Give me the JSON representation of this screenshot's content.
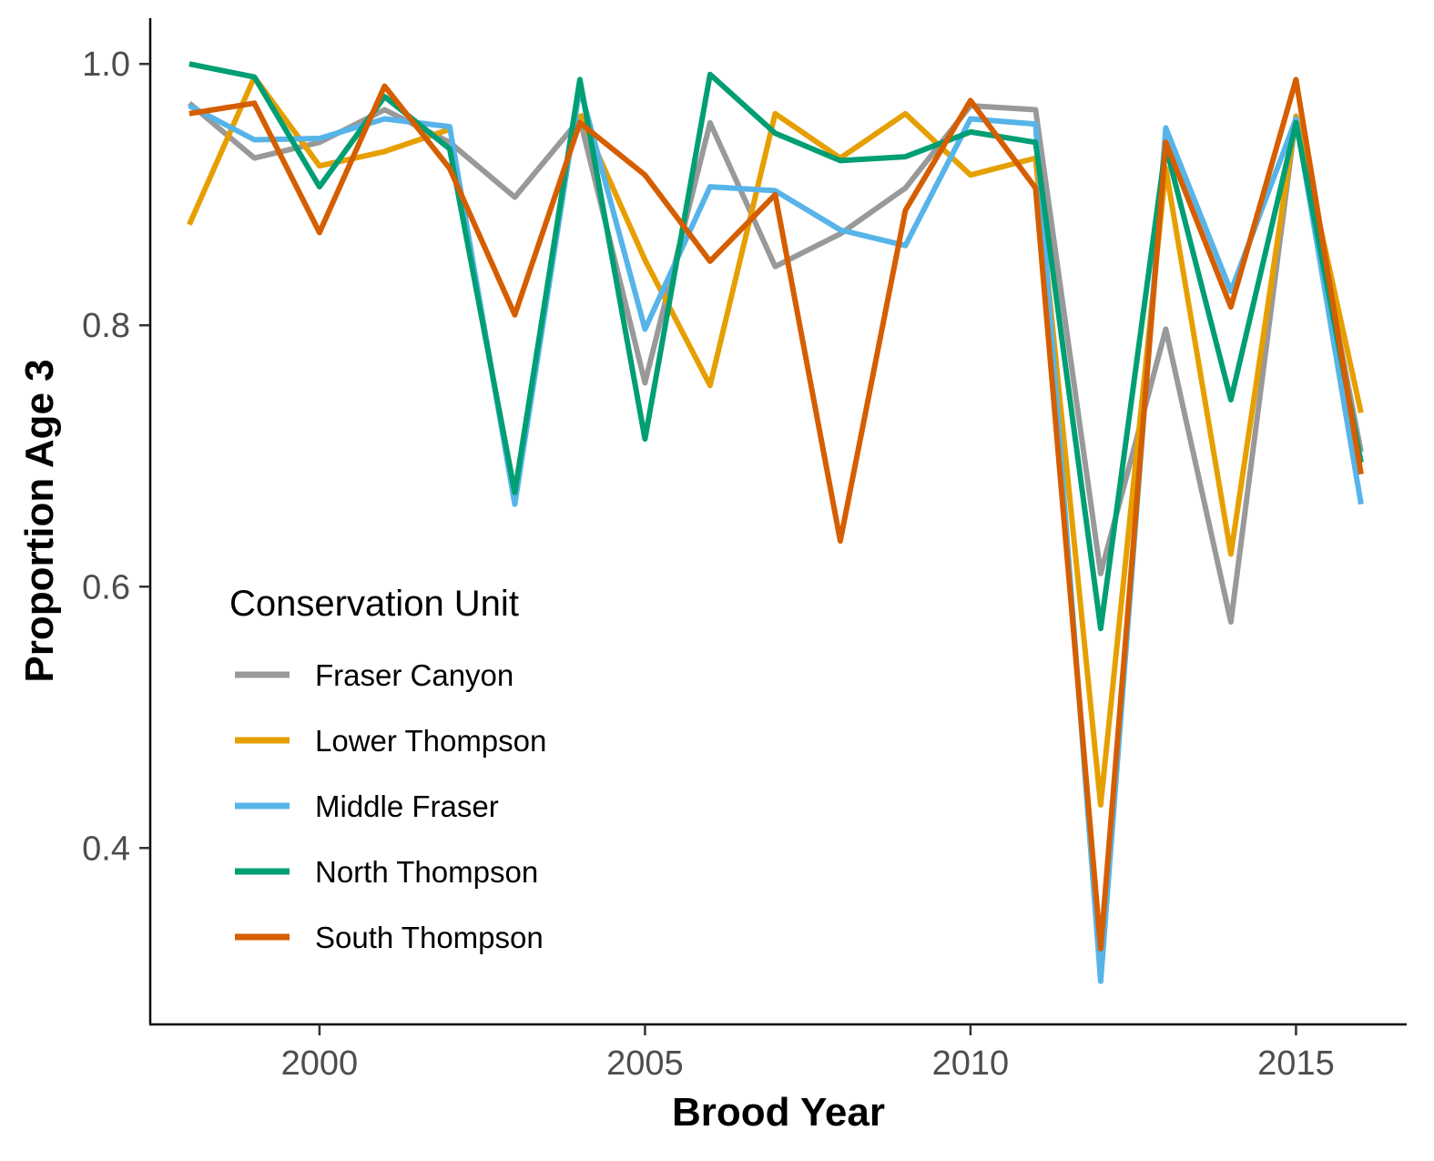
{
  "chart_data": {
    "type": "line",
    "title": "",
    "xlabel": "Brood Year",
    "ylabel": "Proportion Age 3",
    "xlim": [
      1997.4,
      2016.7
    ],
    "ylim": [
      0.265,
      1.035
    ],
    "x_ticks": [
      2000,
      2005,
      2010,
      2015
    ],
    "x_tick_labels": [
      "2000",
      "2005",
      "2010",
      "2015"
    ],
    "y_ticks": [
      0.4,
      0.6,
      0.8,
      1.0
    ],
    "y_tick_labels": [
      "0.4",
      "0.6",
      "0.8",
      "1.0"
    ],
    "grid": false,
    "legend": {
      "title": "Conservation Unit",
      "placement": "bottom-left inside plot"
    },
    "x": [
      1998,
      1999,
      2000,
      2001,
      2002,
      2003,
      2004,
      2005,
      2006,
      2007,
      2008,
      2009,
      2010,
      2011,
      2012,
      2013,
      2014,
      2015,
      2016
    ],
    "series": [
      {
        "name": "Fraser Canyon",
        "color": "#999999",
        "values": [
          0.97,
          0.928,
          0.94,
          0.965,
          0.94,
          0.898,
          0.958,
          0.756,
          0.955,
          0.845,
          0.87,
          0.905,
          0.968,
          0.965,
          0.61,
          0.797,
          0.573,
          0.96,
          0.703
        ]
      },
      {
        "name": "Lower Thompson",
        "color": "#E69F00",
        "values": [
          0.877,
          0.99,
          0.922,
          0.933,
          0.95,
          null,
          0.962,
          0.85,
          0.754,
          0.962,
          0.928,
          0.962,
          0.915,
          0.928,
          0.433,
          0.92,
          0.625,
          0.96,
          0.733
        ]
      },
      {
        "name": "Middle Fraser",
        "color": "#56B4E9",
        "values": [
          0.968,
          0.942,
          0.943,
          0.958,
          0.952,
          0.663,
          0.982,
          0.797,
          0.906,
          0.903,
          0.873,
          0.861,
          0.958,
          0.954,
          0.298,
          0.951,
          0.826,
          0.958,
          0.663
        ]
      },
      {
        "name": "North Thompson",
        "color": "#009E73",
        "values": [
          1.0,
          0.99,
          0.906,
          0.975,
          0.935,
          0.672,
          0.988,
          0.713,
          0.992,
          0.947,
          0.926,
          0.929,
          0.948,
          0.94,
          0.568,
          0.937,
          0.743,
          0.955,
          0.695
        ]
      },
      {
        "name": "South Thompson",
        "color": "#D55E00",
        "values": [
          0.962,
          0.97,
          0.871,
          0.983,
          0.92,
          0.808,
          0.955,
          0.915,
          0.849,
          0.9,
          0.635,
          0.888,
          0.972,
          0.905,
          0.323,
          0.94,
          0.814,
          0.988,
          0.686
        ]
      }
    ]
  }
}
